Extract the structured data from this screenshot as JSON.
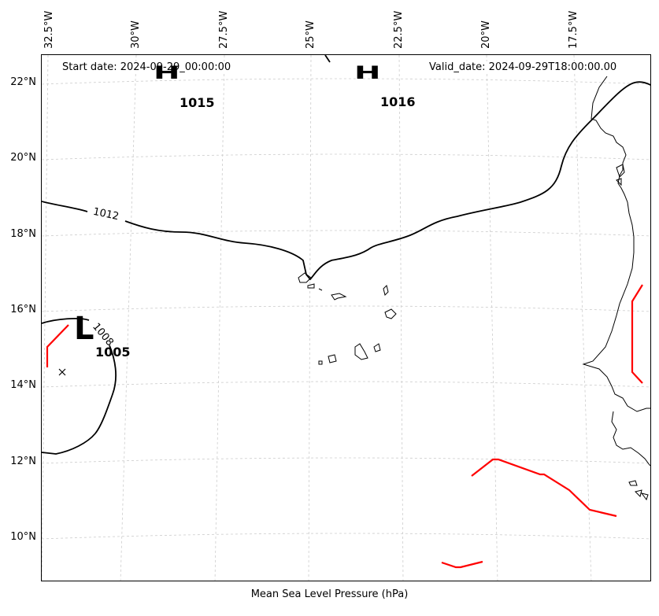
{
  "header": {
    "start_date": "Start date: 2024-09-29_00:00:00",
    "valid_date": "Valid_date: 2024-09-29T18:00:00.00"
  },
  "footer_label": "Mean Sea Level Pressure (hPa)",
  "longitude_labels": [
    "32.5°W",
    "30°W",
    "27.5°W",
    "25°W",
    "22.5°W",
    "20°W",
    "17.5°W"
  ],
  "latitude_labels": [
    "22°N",
    "20°N",
    "18°N",
    "16°N",
    "14°N",
    "12°N",
    "10°N"
  ],
  "isobar_labels": [
    "1012",
    "1008"
  ],
  "pressure_centers": [
    {
      "type": "H",
      "value": "1015"
    },
    {
      "type": "H",
      "value": "1016"
    },
    {
      "type": "L",
      "value": "1005"
    }
  ],
  "colors": {
    "isobar": "#000000",
    "front": "#ff0000",
    "grid": "#cccccc",
    "coast": "#000000"
  }
}
